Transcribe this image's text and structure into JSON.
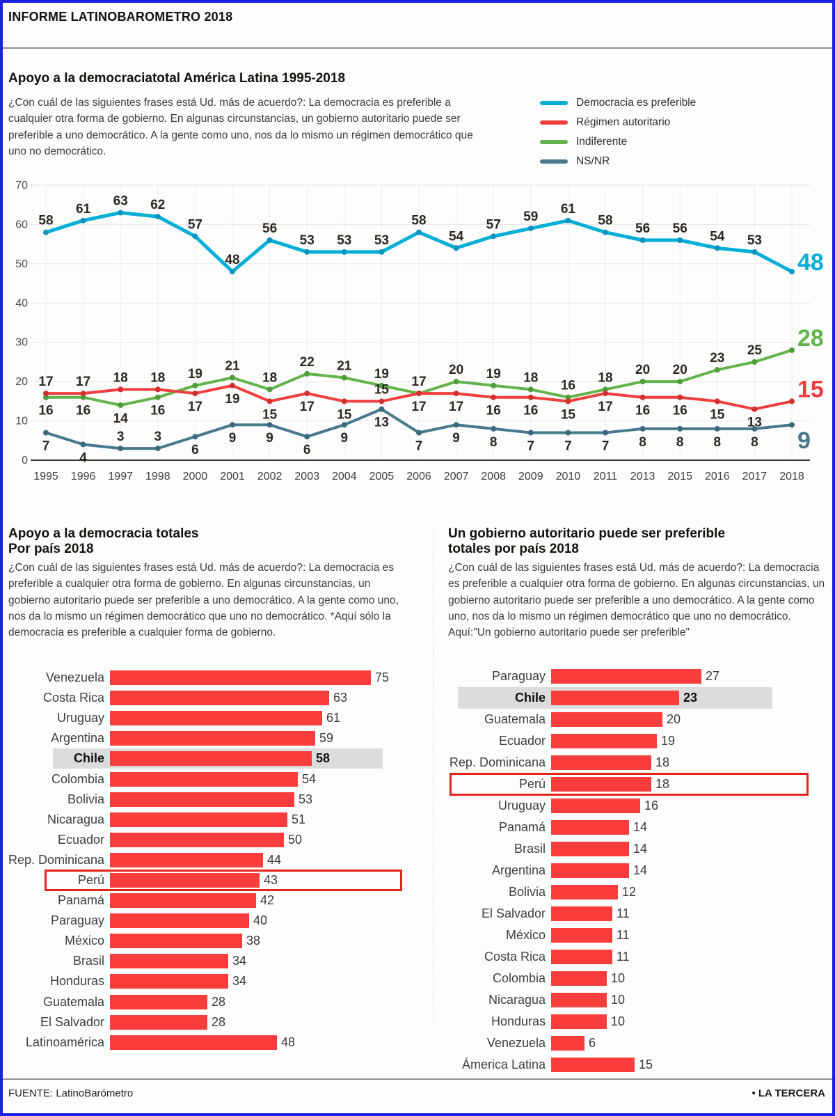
{
  "header": {
    "kicker": "INFORME LATINOBAROMETRO 2018"
  },
  "colors": {
    "accent_cyan": "#00aed8",
    "accent_red": "#f03e3e",
    "accent_green": "#62b44a",
    "accent_slate": "#47788c",
    "bar_red": "#f93c3c",
    "highlight_band": "#dcdcdc",
    "box_border": "#e1251b",
    "frame_border": "#1f1fe0"
  },
  "line_section": {
    "title": "Apoyo a la democraciatotal América Latina 1995-2018",
    "description": "¿Con cuál de las siguientes frases está Ud. más de acuerdo?: La democracia es preferible a cualquier otra forma de gobierno. En algunas circunstancias, un gobierno autoritario puede ser preferible a uno democrático. A la gente como uno, nos da lo mismo un régimen democrático que uno no democrático."
  },
  "bars_left": {
    "title_line1": "Apoyo a la democracia totales",
    "title_line2": "Por país 2018",
    "description": "¿Con cuál de las siguientes frases está Ud. más de acuerdo?: La democracia es preferible a cualquier otra forma de gobierno. En algunas circunstancias, un gobierno autoritario puede ser preferible a uno democrático. A la gente como uno, nos da lo mismo un régimen democrático que uno no democrático. *Aquí sólo la democracia es preferible a cualquier forma de gobierno."
  },
  "bars_right": {
    "title_line1": "Un gobierno autoritario puede ser preferible",
    "title_line2": "totales por país 2018",
    "description": "¿Con cuál de las siguientes frases está Ud. más de acuerdo?: La democracia es preferible a cualquier otra forma de gobierno. En algunas circunstancias, un gobierno autoritario puede ser preferible a uno democrático. A la gente como uno, nos da lo mismo un régimen democrático que uno no democrático. Aquí:\"Un gobierno autoritario puede ser preferible\""
  },
  "footer": {
    "source": "FUENTE: LatinoBarómetro",
    "credit": "• LA TERCERA"
  },
  "chart_data": [
    {
      "type": "line",
      "title": "Apoyo a la democraciatotal América Latina 1995-2018",
      "x": [
        "1995",
        "1996",
        "1997",
        "1998",
        "2000",
        "2001",
        "2002",
        "2003",
        "2004",
        "2005",
        "2006",
        "2007",
        "2008",
        "2009",
        "2010",
        "2011",
        "2013",
        "2015",
        "2016",
        "2017",
        "2018"
      ],
      "ylim": [
        0,
        70
      ],
      "yticks": [
        0,
        10,
        20,
        30,
        40,
        50,
        60,
        70
      ],
      "grid": true,
      "legend_position": "top-right",
      "series": [
        {
          "name": "Democracia es preferible",
          "color": "#00aed8",
          "marker_color": "#0a93bd",
          "values": [
            58,
            61,
            63,
            62,
            57,
            48,
            56,
            53,
            53,
            53,
            58,
            54,
            57,
            59,
            61,
            58,
            56,
            56,
            54,
            53,
            48
          ],
          "label_sides": "aaaaaaaaaaaaaaaaaaaa",
          "end_label": "48",
          "end_dy": -2
        },
        {
          "name": "Régimen autoritario",
          "color": "#f03e3e",
          "marker_color": "#d32f2f",
          "values": [
            17,
            17,
            18,
            18,
            17,
            19,
            15,
            17,
            15,
            15,
            17,
            17,
            16,
            16,
            15,
            17,
            16,
            16,
            15,
            13,
            15
          ],
          "label_sides": "aaaabbbbbabbbbbbbbbb",
          "end_label": "15",
          "end_dy": -6
        },
        {
          "name": "Indiferente",
          "color": "#62b44a",
          "marker_color": "#4e9c3a",
          "values": [
            16,
            16,
            14,
            16,
            19,
            21,
            18,
            22,
            21,
            19,
            17,
            20,
            19,
            18,
            16,
            18,
            20,
            20,
            23,
            25,
            28
          ],
          "label_sides": "bbbbaaaaaaaaaaaaaaaa",
          "end_label": "28",
          "end_dy": -6
        },
        {
          "name": "NS/NR",
          "color": "#47788c",
          "marker_color": "#3c6a7d",
          "values": [
            7,
            4,
            3,
            3,
            6,
            9,
            9,
            6,
            9,
            13,
            7,
            9,
            8,
            7,
            7,
            7,
            8,
            8,
            8,
            8,
            9
          ],
          "label_sides": "bbaabbbbbbbbbbbbbbbb",
          "end_label": "9",
          "end_dy": 34
        }
      ]
    },
    {
      "type": "bar",
      "title": "Apoyo a la democracia totales Por país 2018",
      "categories": [
        "Venezuela",
        "Costa Rica",
        "Uruguay",
        "Argentina",
        "Chile",
        "Colombia",
        "Bolivia",
        "Nicaragua",
        "Ecuador",
        "Rep. Dominicana",
        "Perú",
        "Panamá",
        "Paraguay",
        "México",
        "Brasil",
        "Honduras",
        "Guatemala",
        "El Salvador",
        "Latinoamérica"
      ],
      "values": [
        75,
        63,
        61,
        59,
        58,
        54,
        53,
        51,
        50,
        44,
        43,
        42,
        40,
        38,
        34,
        34,
        28,
        28,
        48
      ],
      "highlight": "Chile",
      "boxed": "Perú",
      "xlim": [
        0,
        80
      ]
    },
    {
      "type": "bar",
      "title": "Un gobierno autoritario puede ser preferible totales por país 2018",
      "categories": [
        "Paraguay",
        "Chile",
        "Guatemala",
        "Ecuador",
        "Rep. Dominicana",
        "Perú",
        "Uruguay",
        "Panamá",
        "Brasil",
        "Argentina",
        "Bolivia",
        "El Salvador",
        "México",
        "Costa Rica",
        "Colombia",
        "Nicaragua",
        "Honduras",
        "Venezuela",
        "Ámerica Latina"
      ],
      "values": [
        27,
        23,
        20,
        19,
        18,
        18,
        16,
        14,
        14,
        14,
        12,
        11,
        11,
        11,
        10,
        10,
        10,
        6,
        15
      ],
      "highlight": "Chile",
      "boxed": "Perú",
      "xlim": [
        0,
        30
      ]
    }
  ]
}
